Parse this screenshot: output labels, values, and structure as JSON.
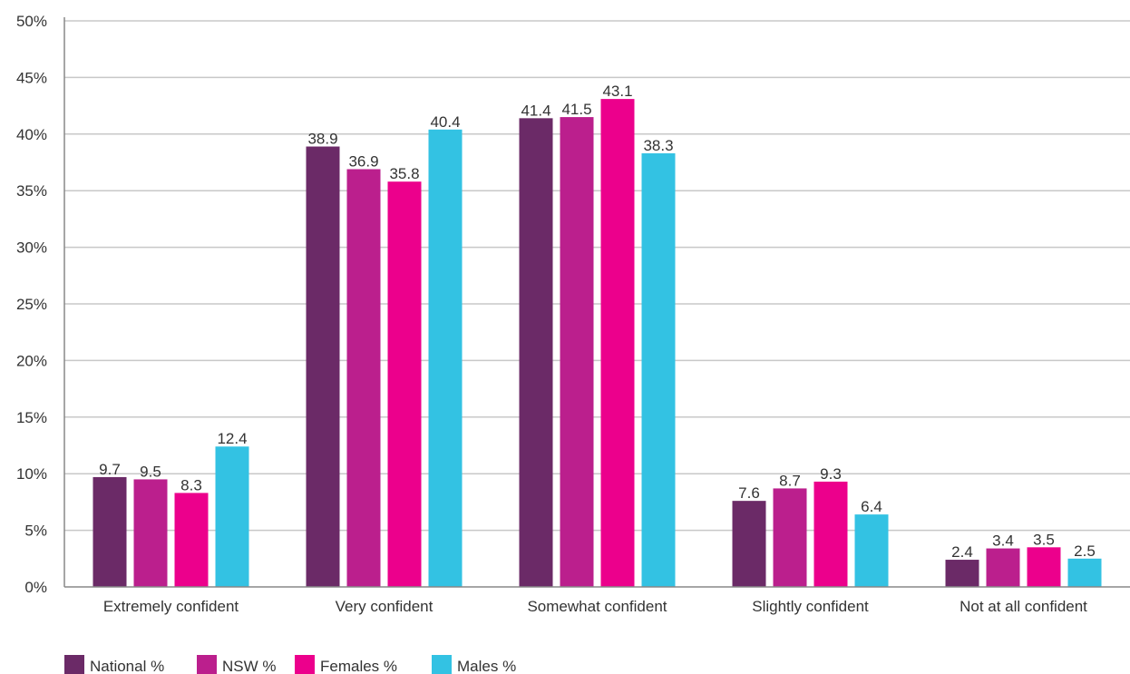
{
  "chart_data": {
    "type": "bar",
    "title": "",
    "xlabel": "",
    "ylabel": "",
    "ylim": [
      0,
      50
    ],
    "y_ticks": [
      "0%",
      "5%",
      "10%",
      "15%",
      "20%",
      "25%",
      "30%",
      "35%",
      "40%",
      "45%",
      "50%"
    ],
    "grid": true,
    "legend_position": "bottom-left",
    "categories": [
      "Extremely confident",
      "Very confident",
      "Somewhat confident",
      "Slightly confident",
      "Not at all confident"
    ],
    "series": [
      {
        "name": "National %",
        "color": "#6b2a67",
        "values": [
          9.7,
          38.9,
          41.4,
          7.6,
          2.4
        ],
        "labels": [
          "9.7",
          "38.9",
          "41.4",
          "7.6",
          "2.4"
        ]
      },
      {
        "name": "NSW %",
        "color": "#bb1f8d",
        "values": [
          9.5,
          36.9,
          41.5,
          8.7,
          3.4
        ],
        "labels": [
          "9.5",
          "36.9",
          "41.5",
          "8.7",
          "3.4"
        ]
      },
      {
        "name": "Females %",
        "color": "#ec008c",
        "values": [
          8.3,
          35.8,
          43.1,
          9.3,
          3.5
        ],
        "labels": [
          "8.3",
          "35.8",
          "43.1",
          "9.3",
          "3.5"
        ]
      },
      {
        "name": "Males %",
        "color": "#33c2e3",
        "values": [
          12.4,
          40.4,
          38.3,
          6.4,
          2.5
        ],
        "labels": [
          "12.4",
          "40.4",
          "38.3",
          "6.4",
          "2.5"
        ]
      }
    ]
  }
}
